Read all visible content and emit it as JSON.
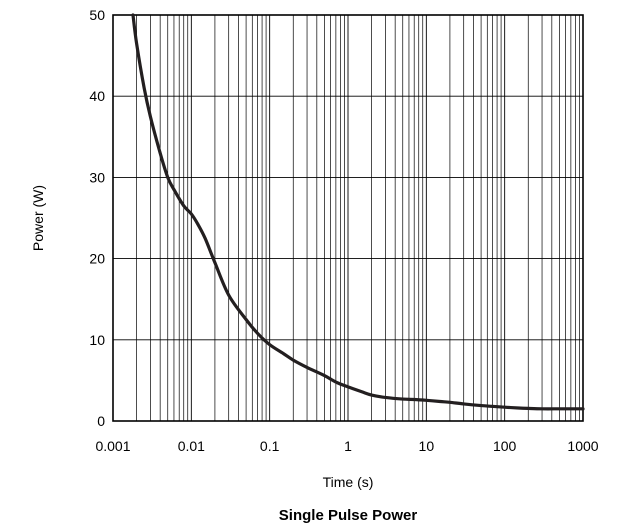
{
  "chart_data": {
    "type": "line",
    "title": "Single Pulse Power",
    "xlabel": "Time (s)",
    "ylabel": "Power (W)",
    "x_scale": "log",
    "xlim": [
      0.001,
      1000
    ],
    "ylim": [
      0,
      50
    ],
    "x_ticks": [
      "0.001",
      "0.01",
      "0.1",
      "1",
      "10",
      "100",
      "1000"
    ],
    "y_ticks": [
      "0",
      "10",
      "20",
      "30",
      "40",
      "50"
    ],
    "grid": true,
    "colors": {
      "line": "#231f20",
      "grid": "#000000"
    },
    "series": [
      {
        "name": "",
        "x": [
          0.0018,
          0.002,
          0.0025,
          0.003,
          0.004,
          0.005,
          0.006,
          0.008,
          0.01,
          0.012,
          0.015,
          0.02,
          0.03,
          0.05,
          0.07,
          0.1,
          0.15,
          0.2,
          0.3,
          0.5,
          0.7,
          1,
          1.5,
          2,
          3,
          5,
          7,
          10,
          15,
          20,
          30,
          50,
          70,
          100,
          150,
          200,
          300,
          500,
          700,
          1000
        ],
        "y": [
          50,
          46.5,
          41,
          37.5,
          33,
          30,
          28.5,
          26.5,
          25.5,
          24.3,
          22.5,
          19.5,
          15.5,
          12.5,
          10.8,
          9.4,
          8.3,
          7.5,
          6.6,
          5.6,
          4.8,
          4.2,
          3.6,
          3.2,
          2.9,
          2.7,
          2.65,
          2.55,
          2.4,
          2.3,
          2.1,
          1.9,
          1.8,
          1.7,
          1.6,
          1.55,
          1.5,
          1.5,
          1.5,
          1.5
        ]
      }
    ]
  }
}
